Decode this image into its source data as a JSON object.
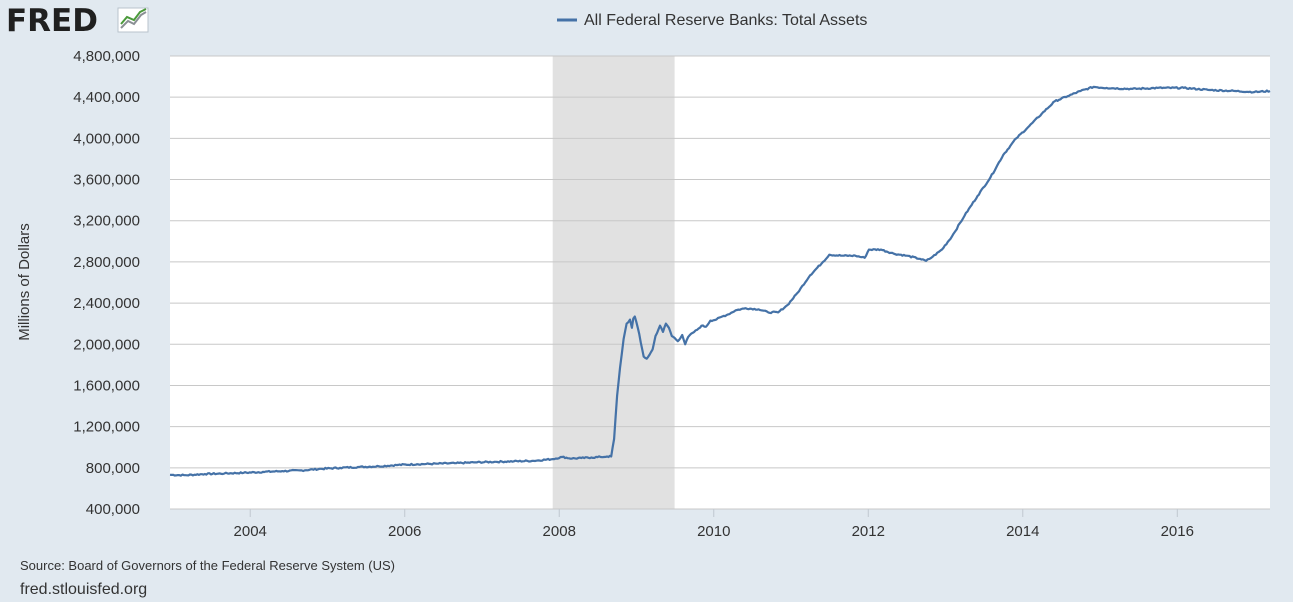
{
  "logo": {
    "text": "FRED",
    "colors": {
      "text": "#202020",
      "icon_green": "#4b9a3b",
      "icon_gray": "#8a8f94"
    }
  },
  "source_note": "Source: Board of Governors of the Federal Reserve System (US)",
  "site_url": "fred.stlouisfed.org",
  "chart_data": {
    "type": "line",
    "title": "",
    "legend": [
      "All Federal Reserve Banks: Total Assets"
    ],
    "legend_position": "top-center",
    "xlabel": "",
    "ylabel": "Millions of Dollars",
    "grid": true,
    "x_ticks": [
      "2004",
      "2006",
      "2008",
      "2010",
      "2012",
      "2014",
      "2016"
    ],
    "y_ticks": [
      "400,000",
      "800,000",
      "1,200,000",
      "1,600,000",
      "2,000,000",
      "2,400,000",
      "2,800,000",
      "3,200,000",
      "3,600,000",
      "4,000,000",
      "4,400,000",
      "4,800,000"
    ],
    "xlim": [
      "2002-12-18",
      "2017-03-15"
    ],
    "ylim": [
      400000,
      4800000
    ],
    "recession_shading": [
      {
        "start": "2007-12-01",
        "end": "2009-06-30"
      }
    ],
    "colors": {
      "line": "#4572a7",
      "recession": "#e1e1e1",
      "grid": "#c8c8c8",
      "plot_bg": "#ffffff",
      "page_bg": "#e1e9f0"
    },
    "series": [
      {
        "name": "All Federal Reserve Banks: Total Assets",
        "points": [
          [
            "2002-12-18",
            732000
          ],
          [
            "2003-03-01",
            728000
          ],
          [
            "2003-06-01",
            740000
          ],
          [
            "2003-09-01",
            745000
          ],
          [
            "2003-12-01",
            752000
          ],
          [
            "2004-03-01",
            760000
          ],
          [
            "2004-06-01",
            768000
          ],
          [
            "2004-09-01",
            775000
          ],
          [
            "2004-12-01",
            790000
          ],
          [
            "2005-03-01",
            800000
          ],
          [
            "2005-06-01",
            808000
          ],
          [
            "2005-09-01",
            815000
          ],
          [
            "2005-12-01",
            828000
          ],
          [
            "2006-03-01",
            835000
          ],
          [
            "2006-06-01",
            840000
          ],
          [
            "2006-09-01",
            845000
          ],
          [
            "2006-12-01",
            853000
          ],
          [
            "2007-03-01",
            858000
          ],
          [
            "2007-06-01",
            863000
          ],
          [
            "2007-09-01",
            868000
          ],
          [
            "2007-12-01",
            885000
          ],
          [
            "2008-01-15",
            905000
          ],
          [
            "2008-03-01",
            890000
          ],
          [
            "2008-04-15",
            895000
          ],
          [
            "2008-06-01",
            900000
          ],
          [
            "2008-07-15",
            905000
          ],
          [
            "2008-08-15",
            910000
          ],
          [
            "2008-09-03",
            910000
          ],
          [
            "2008-09-17",
            1080000
          ],
          [
            "2008-10-01",
            1500000
          ],
          [
            "2008-10-15",
            1770000
          ],
          [
            "2008-11-01",
            2050000
          ],
          [
            "2008-11-15",
            2200000
          ],
          [
            "2008-12-01",
            2240000
          ],
          [
            "2008-12-10",
            2160000
          ],
          [
            "2008-12-17",
            2250000
          ],
          [
            "2008-12-24",
            2270000
          ],
          [
            "2009-01-07",
            2160000
          ],
          [
            "2009-01-21",
            2020000
          ],
          [
            "2009-02-04",
            1880000
          ],
          [
            "2009-02-18",
            1860000
          ],
          [
            "2009-03-04",
            1900000
          ],
          [
            "2009-03-18",
            1950000
          ],
          [
            "2009-04-01",
            2080000
          ],
          [
            "2009-04-22",
            2180000
          ],
          [
            "2009-05-06",
            2120000
          ],
          [
            "2009-05-20",
            2200000
          ],
          [
            "2009-06-03",
            2160000
          ],
          [
            "2009-06-17",
            2080000
          ],
          [
            "2009-07-01",
            2060000
          ],
          [
            "2009-07-15",
            2030000
          ],
          [
            "2009-08-05",
            2090000
          ],
          [
            "2009-08-19",
            2000000
          ],
          [
            "2009-09-02",
            2070000
          ],
          [
            "2009-09-23",
            2110000
          ],
          [
            "2009-10-14",
            2140000
          ],
          [
            "2009-11-04",
            2180000
          ],
          [
            "2009-11-25",
            2170000
          ],
          [
            "2009-12-16",
            2230000
          ],
          [
            "2010-01-13",
            2240000
          ],
          [
            "2010-02-10",
            2270000
          ],
          [
            "2010-03-10",
            2290000
          ],
          [
            "2010-04-14",
            2330000
          ],
          [
            "2010-06-01",
            2350000
          ],
          [
            "2010-08-01",
            2340000
          ],
          [
            "2010-09-15",
            2310000
          ],
          [
            "2010-11-01",
            2310000
          ],
          [
            "2010-12-15",
            2380000
          ],
          [
            "2011-02-01",
            2500000
          ],
          [
            "2011-04-01",
            2670000
          ],
          [
            "2011-06-01",
            2800000
          ],
          [
            "2011-07-01",
            2870000
          ],
          [
            "2011-09-01",
            2860000
          ],
          [
            "2011-11-01",
            2860000
          ],
          [
            "2011-12-15",
            2840000
          ],
          [
            "2012-01-04",
            2920000
          ],
          [
            "2012-03-01",
            2920000
          ],
          [
            "2012-05-01",
            2880000
          ],
          [
            "2012-07-01",
            2860000
          ],
          [
            "2012-09-01",
            2830000
          ],
          [
            "2012-10-01",
            2810000
          ],
          [
            "2012-11-01",
            2850000
          ],
          [
            "2012-12-15",
            2920000
          ],
          [
            "2013-02-01",
            3050000
          ],
          [
            "2013-04-01",
            3250000
          ],
          [
            "2013-06-01",
            3440000
          ],
          [
            "2013-08-01",
            3620000
          ],
          [
            "2013-10-01",
            3840000
          ],
          [
            "2013-12-01",
            4000000
          ],
          [
            "2014-02-01",
            4120000
          ],
          [
            "2014-04-01",
            4240000
          ],
          [
            "2014-06-01",
            4360000
          ],
          [
            "2014-08-01",
            4410000
          ],
          [
            "2014-10-01",
            4460000
          ],
          [
            "2014-12-01",
            4500000
          ],
          [
            "2015-02-01",
            4490000
          ],
          [
            "2015-06-01",
            4480000
          ],
          [
            "2015-10-01",
            4490000
          ],
          [
            "2016-02-01",
            4490000
          ],
          [
            "2016-06-01",
            4470000
          ],
          [
            "2016-10-01",
            4460000
          ],
          [
            "2017-01-01",
            4450000
          ],
          [
            "2017-03-15",
            4460000
          ]
        ]
      }
    ]
  }
}
